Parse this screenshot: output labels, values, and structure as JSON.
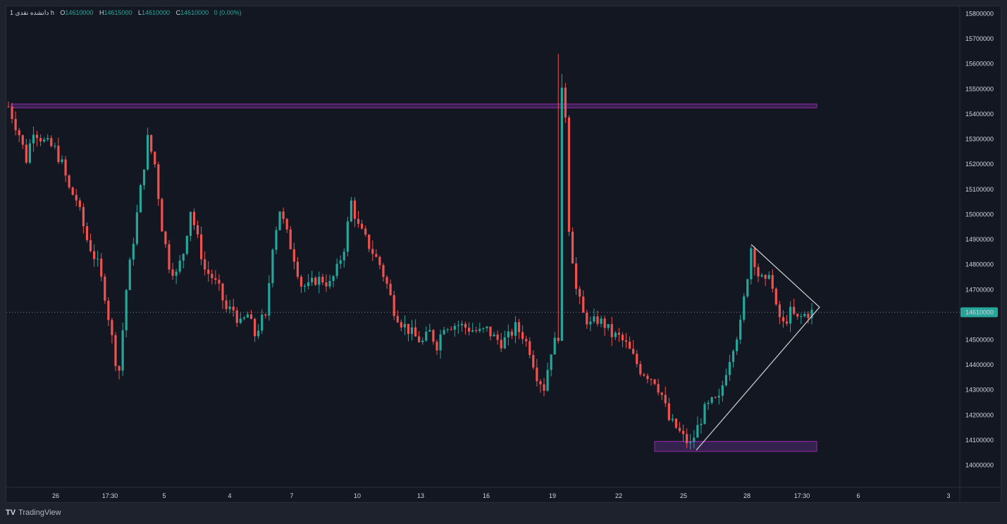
{
  "legend": {
    "symbol": "1 دانشده نقدی h",
    "open_label": "O",
    "open": "14610000",
    "high_label": "H",
    "high": "14615000",
    "low_label": "L",
    "low": "14610000",
    "close_label": "C",
    "close": "14610000",
    "change": "0 (0.00%)"
  },
  "footer": {
    "brand": "TradingView",
    "logo_glyph": "TV"
  },
  "colors": {
    "up": "#26a69a",
    "down": "#ef5350",
    "zone_fill": "#4a2a6a",
    "zone_border": "#9c27b0",
    "triangle": "#c8c8c8",
    "price_badge": "#26a69a"
  },
  "chart_data": {
    "type": "candlestick",
    "ylim": [
      13900000,
      15850000
    ],
    "y_ticks": [
      14000000,
      14100000,
      14200000,
      14300000,
      14400000,
      14500000,
      14600000,
      14700000,
      14800000,
      14900000,
      15000000,
      15100000,
      15200000,
      15300000,
      15400000,
      15500000,
      15600000,
      15700000,
      15800000
    ],
    "x_ticks": [
      "26",
      "17:30",
      "5",
      "4",
      "7",
      "10",
      "13",
      "16",
      "19",
      "22",
      "25",
      "28",
      "17:30",
      "6",
      "3"
    ],
    "current_price": 14610000,
    "current_price_label": "14610000",
    "anchors": [
      [
        0,
        15430000
      ],
      [
        3,
        15320000
      ],
      [
        5,
        15220000
      ],
      [
        7,
        15340000
      ],
      [
        10,
        15290000
      ],
      [
        13,
        15260000
      ],
      [
        15,
        15200000
      ],
      [
        17,
        15100000
      ],
      [
        19,
        15060000
      ],
      [
        22,
        14900000
      ],
      [
        25,
        14800000
      ],
      [
        27,
        14680000
      ],
      [
        30,
        14420000
      ],
      [
        31,
        14380000
      ],
      [
        33,
        14700000
      ],
      [
        35,
        14900000
      ],
      [
        37,
        15100000
      ],
      [
        39,
        15300000
      ],
      [
        41,
        15200000
      ],
      [
        43,
        14950000
      ],
      [
        45,
        14800000
      ],
      [
        47,
        14760000
      ],
      [
        49,
        14850000
      ],
      [
        51,
        15020000
      ],
      [
        53,
        14900000
      ],
      [
        55,
        14780000
      ],
      [
        57,
        14750000
      ],
      [
        59,
        14700000
      ],
      [
        61,
        14620000
      ],
      [
        63,
        14620000
      ],
      [
        65,
        14560000
      ],
      [
        67,
        14600000
      ],
      [
        69,
        14520000
      ],
      [
        71,
        14580000
      ],
      [
        72,
        14580000
      ],
      [
        74,
        14880000
      ],
      [
        76,
        15020000
      ],
      [
        78,
        14920000
      ],
      [
        80,
        14830000
      ],
      [
        82,
        14720000
      ],
      [
        84,
        14710000
      ],
      [
        86,
        14740000
      ],
      [
        88,
        14740000
      ],
      [
        90,
        14720000
      ],
      [
        92,
        14780000
      ],
      [
        94,
        14870000
      ],
      [
        96,
        15050000
      ],
      [
        98,
        14950000
      ],
      [
        100,
        14900000
      ],
      [
        102,
        14850000
      ],
      [
        104,
        14800000
      ],
      [
        106,
        14720000
      ],
      [
        108,
        14620000
      ],
      [
        110,
        14570000
      ],
      [
        112,
        14540000
      ],
      [
        114,
        14510000
      ],
      [
        116,
        14490000
      ],
      [
        118,
        14530000
      ],
      [
        120,
        14480000
      ],
      [
        122,
        14560000
      ],
      [
        124,
        14560000
      ],
      [
        126,
        14560000
      ],
      [
        128,
        14550000
      ],
      [
        130,
        14540000
      ],
      [
        132,
        14530000
      ],
      [
        134,
        14540000
      ],
      [
        136,
        14510000
      ],
      [
        138,
        14490000
      ],
      [
        140,
        14510000
      ],
      [
        142,
        14550000
      ],
      [
        144,
        14520000
      ],
      [
        146,
        14460000
      ],
      [
        148,
        14360000
      ],
      [
        150,
        14310000
      ],
      [
        152,
        14460000
      ],
      [
        154,
        14520000
      ],
      [
        155,
        15480000
      ],
      [
        156,
        15400000
      ],
      [
        157,
        14950000
      ],
      [
        159,
        14700000
      ],
      [
        161,
        14600000
      ],
      [
        163,
        14560000
      ],
      [
        165,
        14580000
      ],
      [
        167,
        14560000
      ],
      [
        169,
        14520000
      ],
      [
        171,
        14510000
      ],
      [
        173,
        14480000
      ],
      [
        175,
        14430000
      ],
      [
        177,
        14380000
      ],
      [
        179,
        14360000
      ],
      [
        181,
        14340000
      ],
      [
        183,
        14280000
      ],
      [
        185,
        14180000
      ],
      [
        187,
        14150000
      ],
      [
        189,
        14110000
      ],
      [
        191,
        14080000
      ],
      [
        193,
        14150000
      ],
      [
        195,
        14220000
      ],
      [
        197,
        14250000
      ],
      [
        199,
        14260000
      ],
      [
        201,
        14380000
      ],
      [
        203,
        14480000
      ],
      [
        205,
        14560000
      ],
      [
        207,
        14760000
      ],
      [
        208,
        14870000
      ],
      [
        210,
        14760000
      ],
      [
        212,
        14720000
      ],
      [
        213,
        14780000
      ],
      [
        215,
        14620000
      ],
      [
        217,
        14560000
      ],
      [
        219,
        14610000
      ],
      [
        221,
        14580000
      ],
      [
        223,
        14600000
      ],
      [
        225,
        14610000
      ]
    ],
    "annotations": {
      "top_zone": [
        15425000,
        15440000
      ],
      "bottom_zone": [
        14055000,
        14095000
      ],
      "triangle_apex_price": 14630000,
      "triangle_top_price": 14880000,
      "triangle_low_price": 14060000
    }
  }
}
